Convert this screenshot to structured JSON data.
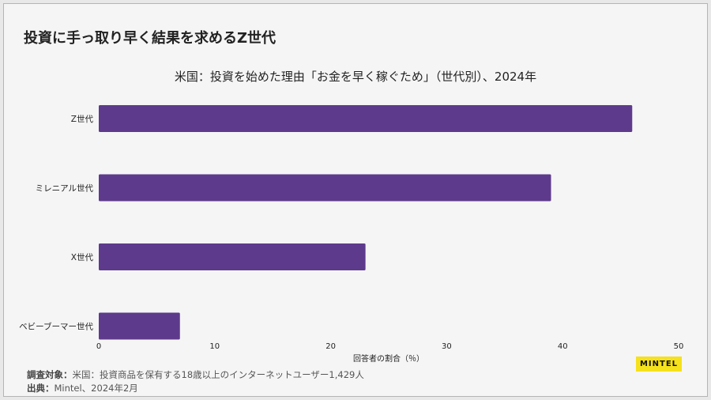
{
  "headline": "投資に手っ取り早く結果を求めるZ世代",
  "chart_data": {
    "type": "bar",
    "orientation": "horizontal",
    "title": "米国：投資を始めた理由「お金を早く稼ぐため」（世代別）、2024年",
    "categories": [
      "Z世代",
      "ミレニアル世代",
      "X世代",
      "ベビーブーマー世代"
    ],
    "values": [
      46,
      39,
      23,
      7
    ],
    "xlabel": "回答者の割合（％）",
    "ylabel": "",
    "xlim": [
      0,
      50
    ],
    "xticks": [
      "0",
      "10",
      "20",
      "30",
      "40",
      "50"
    ],
    "bar_color": "#5e3a8c",
    "grid": false,
    "legend": "none"
  },
  "footer": {
    "survey_label": "調査対象：",
    "survey_text": "米国：投資商品を保有する18歳以上のインターネットユーザー1,429人",
    "source_label": "出典：",
    "source_text": "Mintel、2024年2月"
  },
  "logo": {
    "text": "MINTEL",
    "color": "#f5e11c"
  }
}
